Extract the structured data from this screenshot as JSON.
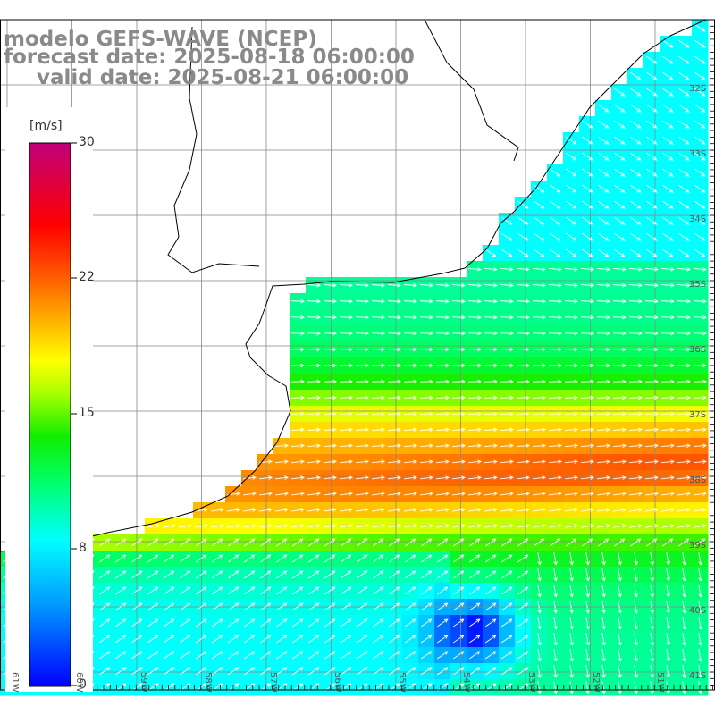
{
  "title": {
    "line1": "modelo GEFS-WAVE (NCEP)",
    "line2": "forecast date: 2025-08-18 06:00:00",
    "line3": "valid date: 2025-08-21 06:00:00"
  },
  "colorbar": {
    "unit": "[m/s]",
    "ticks": [
      "30",
      "22",
      "15",
      "8",
      "0"
    ],
    "values": [
      30,
      22,
      15,
      8,
      0
    ],
    "colors": [
      "#0000ff",
      "#00aaff",
      "#00ffff",
      "#00ff66",
      "#00ff00",
      "#aaff00",
      "#ffff00",
      "#ffaa00",
      "#ff6600",
      "#ff0000",
      "#ee0044",
      "#c0007a"
    ]
  },
  "lat_labels": [
    "32S",
    "33S",
    "34S",
    "35S",
    "36S",
    "37S",
    "38S",
    "39S",
    "40S",
    "41S"
  ],
  "lon_labels": [
    "61W",
    "60W",
    "59W",
    "58W",
    "57W",
    "56W",
    "55W",
    "54W",
    "53W",
    "52W",
    "51W"
  ],
  "field": {
    "variable": "wind speed",
    "units": "m/s",
    "min_lon": -61,
    "max_lon": -50,
    "min_lat": -41,
    "max_lat": -31
  }
}
